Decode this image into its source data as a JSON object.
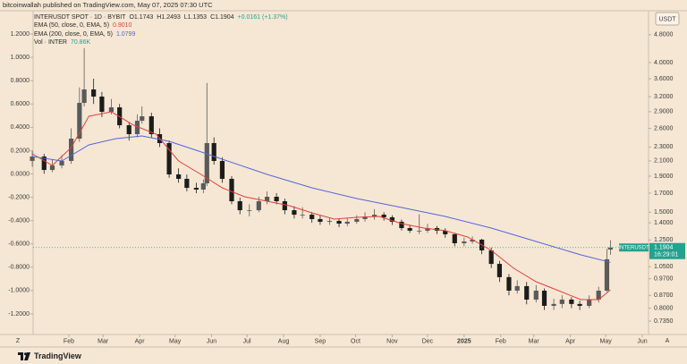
{
  "chart_data": {
    "type": "candlestick",
    "header": "bitcoinwallah published on TradingView.com, May 07, 2025 07:30 UTC",
    "legend": {
      "symbol": "INTERUSDT SPOT · 1D · BYBIT",
      "open": "O1.1743",
      "high": "H1.2493",
      "low": "L1.1353",
      "close": "C1.1904",
      "change": "+0.0161 (+1.37%)"
    },
    "currency": "USDT",
    "price_tag": {
      "symbol": "INTERUSDT",
      "price": "1.1904",
      "countdown": "16:29:01"
    },
    "corner_left": "Z",
    "corner_right": "A",
    "brand": "TradingView",
    "volume_legend": {
      "name": "Vol · INTER",
      "value": "70.86K",
      "color": "#22a28f"
    },
    "log_scale": true,
    "grid": false,
    "up_color": "#5a5a5a",
    "down_color": "#1c1c1c",
    "price_line_color": "#22a28f",
    "xlim": [
      0.7,
      522.3
    ],
    "xticks": [
      {
        "value": 31,
        "label": "Feb"
      },
      {
        "value": 60,
        "label": "Mar"
      },
      {
        "value": 91,
        "label": "Apr"
      },
      {
        "value": 121,
        "label": "May"
      },
      {
        "value": 152,
        "label": "Jun"
      },
      {
        "value": 182,
        "label": "Jul"
      },
      {
        "value": 213,
        "label": "Aug"
      },
      {
        "value": 244,
        "label": "Sep"
      },
      {
        "value": 274,
        "label": "Oct"
      },
      {
        "value": 305,
        "label": "Nov"
      },
      {
        "value": 335,
        "label": "Dec"
      },
      {
        "value": 366,
        "label": "2025"
      },
      {
        "value": 397,
        "label": "Feb"
      },
      {
        "value": 425,
        "label": "Mar"
      },
      {
        "value": 456,
        "label": "Apr"
      },
      {
        "value": 486,
        "label": "May"
      },
      {
        "value": 517,
        "label": "Jun"
      }
    ],
    "ylim": [
      0.673,
      5.62
    ],
    "yticks": [
      {
        "value": 4.8,
        "label": "4.8000"
      },
      {
        "value": 4,
        "label": "4.0000"
      },
      {
        "value": 3.6,
        "label": "3.6000"
      },
      {
        "value": 3.2,
        "label": "3.2000"
      },
      {
        "value": 2.9,
        "label": "2.9000"
      },
      {
        "value": 2.6,
        "label": "2.6000"
      },
      {
        "value": 2.3,
        "label": "2.3000"
      },
      {
        "value": 2.1,
        "label": "2.1000"
      },
      {
        "value": 1.9,
        "label": "1.9000"
      },
      {
        "value": 1.7,
        "label": "1.7000"
      },
      {
        "value": 1.5,
        "label": "1.5000"
      },
      {
        "value": 1.4,
        "label": "1.4000"
      },
      {
        "value": 1.25,
        "label": "1.2500"
      },
      {
        "value": 1.05,
        "label": "1.0500"
      },
      {
        "value": 0.97,
        "label": "0.9700"
      },
      {
        "value": 0.87,
        "label": "0.8700"
      },
      {
        "value": 0.8,
        "label": "0.8000"
      },
      {
        "value": 0.735,
        "label": "0.7350"
      }
    ],
    "y2lim": [
      -1.377,
      1.4
    ],
    "y2ticks": [
      {
        "value": 1.2,
        "label": "1.2000"
      },
      {
        "value": 1,
        "label": "1.0000"
      },
      {
        "value": 0.8,
        "label": "0.8000"
      },
      {
        "value": 0.6,
        "label": "0.6000"
      },
      {
        "value": 0.4,
        "label": "0.4000"
      },
      {
        "value": 0.2,
        "label": "0.2000"
      },
      {
        "value": 0,
        "label": "0.0000"
      },
      {
        "value": -0.2,
        "label": "-0.2000"
      },
      {
        "value": -0.4,
        "label": "-0.4000"
      },
      {
        "value": -0.6,
        "label": "-0.6000"
      },
      {
        "value": -0.8,
        "label": "-0.8000"
      },
      {
        "value": -1,
        "label": "-1.0000"
      },
      {
        "value": -1.2,
        "label": "-1.2000"
      }
    ],
    "candles": [
      {
        "x": 0,
        "open": 2.1,
        "high": 2.25,
        "low": 2.02,
        "close": 2.161
      },
      {
        "x": 10,
        "open": 2.161,
        "high": 2.2,
        "low": 1.93,
        "close": 1.979
      },
      {
        "x": 17,
        "open": 1.979,
        "high": 2.12,
        "low": 1.95,
        "close": 2.038
      },
      {
        "x": 25,
        "open": 2.038,
        "high": 2.18,
        "low": 2.0,
        "close": 2.099
      },
      {
        "x": 33,
        "open": 2.099,
        "high": 2.6,
        "low": 2.06,
        "close": 2.43
      },
      {
        "x": 40,
        "open": 2.43,
        "high": 3.4,
        "low": 2.38,
        "close": 3.072
      },
      {
        "x": 44,
        "open": 3.072,
        "high": 4.4,
        "low": 3.0,
        "close": 3.355
      },
      {
        "x": 52,
        "open": 3.355,
        "high": 3.6,
        "low": 3.05,
        "close": 3.201
      },
      {
        "x": 59,
        "open": 3.201,
        "high": 3.3,
        "low": 2.8,
        "close": 2.897
      },
      {
        "x": 67,
        "open": 2.897,
        "high": 3.15,
        "low": 2.85,
        "close": 2.983
      },
      {
        "x": 74,
        "open": 2.983,
        "high": 3.05,
        "low": 2.6,
        "close": 2.653
      },
      {
        "x": 82,
        "open": 2.653,
        "high": 2.7,
        "low": 2.4,
        "close": 2.502
      },
      {
        "x": 89,
        "open": 2.502,
        "high": 2.85,
        "low": 2.45,
        "close": 2.732
      },
      {
        "x": 93,
        "open": 2.732,
        "high": 3.0,
        "low": 2.68,
        "close": 2.813
      },
      {
        "x": 101,
        "open": 2.813,
        "high": 2.88,
        "low": 2.45,
        "close": 2.502
      },
      {
        "x": 108,
        "open": 2.502,
        "high": 2.6,
        "low": 2.3,
        "close": 2.36
      },
      {
        "x": 116,
        "open": 2.36,
        "high": 2.4,
        "low": 1.88,
        "close": 1.922
      },
      {
        "x": 124,
        "open": 1.922,
        "high": 2.0,
        "low": 1.82,
        "close": 1.867
      },
      {
        "x": 131,
        "open": 1.867,
        "high": 1.92,
        "low": 1.72,
        "close": 1.76
      },
      {
        "x": 139,
        "open": 1.76,
        "high": 1.82,
        "low": 1.7,
        "close": 1.74
      },
      {
        "x": 145,
        "open": 1.74,
        "high": 1.86,
        "low": 1.7,
        "close": 1.813
      },
      {
        "x": 148,
        "open": 1.813,
        "high": 3.5,
        "low": 1.78,
        "close": 2.36
      },
      {
        "x": 154,
        "open": 2.36,
        "high": 2.45,
        "low": 2.05,
        "close": 2.099
      },
      {
        "x": 161,
        "open": 2.099,
        "high": 2.15,
        "low": 1.82,
        "close": 1.867
      },
      {
        "x": 169,
        "open": 1.867,
        "high": 1.9,
        "low": 1.58,
        "close": 1.612
      },
      {
        "x": 176,
        "open": 1.612,
        "high": 1.65,
        "low": 1.48,
        "close": 1.52
      },
      {
        "x": 184,
        "open": 1.52,
        "high": 1.58,
        "low": 1.46,
        "close": 1.52
      },
      {
        "x": 192,
        "open": 1.52,
        "high": 1.66,
        "low": 1.5,
        "close": 1.612
      },
      {
        "x": 199,
        "open": 1.612,
        "high": 1.72,
        "low": 1.58,
        "close": 1.66
      },
      {
        "x": 207,
        "open": 1.66,
        "high": 1.7,
        "low": 1.58,
        "close": 1.612
      },
      {
        "x": 214,
        "open": 1.612,
        "high": 1.64,
        "low": 1.48,
        "close": 1.52
      },
      {
        "x": 222,
        "open": 1.52,
        "high": 1.56,
        "low": 1.44,
        "close": 1.476
      },
      {
        "x": 229,
        "open": 1.476,
        "high": 1.55,
        "low": 1.44,
        "close": 1.476
      },
      {
        "x": 237,
        "open": 1.476,
        "high": 1.5,
        "low": 1.4,
        "close": 1.434
      },
      {
        "x": 244,
        "open": 1.434,
        "high": 1.47,
        "low": 1.38,
        "close": 1.409
      },
      {
        "x": 252,
        "open": 1.409,
        "high": 1.45,
        "low": 1.38,
        "close": 1.417
      },
      {
        "x": 260,
        "open": 1.417,
        "high": 1.44,
        "low": 1.36,
        "close": 1.392
      },
      {
        "x": 267,
        "open": 1.392,
        "high": 1.44,
        "low": 1.37,
        "close": 1.409
      },
      {
        "x": 275,
        "open": 1.409,
        "high": 1.47,
        "low": 1.39,
        "close": 1.434
      },
      {
        "x": 282,
        "open": 1.434,
        "high": 1.5,
        "low": 1.41,
        "close": 1.459
      },
      {
        "x": 290,
        "open": 1.459,
        "high": 1.53,
        "low": 1.43,
        "close": 1.476
      },
      {
        "x": 298,
        "open": 1.476,
        "high": 1.5,
        "low": 1.42,
        "close": 1.451
      },
      {
        "x": 305,
        "open": 1.451,
        "high": 1.47,
        "low": 1.38,
        "close": 1.409
      },
      {
        "x": 313,
        "open": 1.409,
        "high": 1.43,
        "low": 1.33,
        "close": 1.352
      },
      {
        "x": 320,
        "open": 1.352,
        "high": 1.38,
        "low": 1.31,
        "close": 1.329
      },
      {
        "x": 328,
        "open": 1.329,
        "high": 1.48,
        "low": 1.3,
        "close": 1.329
      },
      {
        "x": 335,
        "open": 1.329,
        "high": 1.39,
        "low": 1.31,
        "close": 1.352
      },
      {
        "x": 343,
        "open": 1.352,
        "high": 1.37,
        "low": 1.3,
        "close": 1.329
      },
      {
        "x": 350,
        "open": 1.329,
        "high": 1.35,
        "low": 1.27,
        "close": 1.298
      },
      {
        "x": 358,
        "open": 1.298,
        "high": 1.31,
        "low": 1.2,
        "close": 1.224
      },
      {
        "x": 366,
        "open": 1.224,
        "high": 1.27,
        "low": 1.2,
        "close": 1.238
      },
      {
        "x": 373,
        "open": 1.238,
        "high": 1.28,
        "low": 1.22,
        "close": 1.253
      },
      {
        "x": 381,
        "open": 1.253,
        "high": 1.26,
        "low": 1.14,
        "close": 1.168
      },
      {
        "x": 389,
        "open": 1.168,
        "high": 1.19,
        "low": 1.04,
        "close": 1.069
      },
      {
        "x": 396,
        "open": 1.069,
        "high": 1.09,
        "low": 0.95,
        "close": 0.98
      },
      {
        "x": 404,
        "open": 0.98,
        "high": 1.0,
        "low": 0.87,
        "close": 0.897
      },
      {
        "x": 411,
        "open": 0.897,
        "high": 0.96,
        "low": 0.88,
        "close": 0.924
      },
      {
        "x": 419,
        "open": 0.924,
        "high": 0.95,
        "low": 0.82,
        "close": 0.846
      },
      {
        "x": 427,
        "open": 0.846,
        "high": 0.93,
        "low": 0.83,
        "close": 0.897
      },
      {
        "x": 434,
        "open": 0.897,
        "high": 0.91,
        "low": 0.79,
        "close": 0.812
      },
      {
        "x": 442,
        "open": 0.812,
        "high": 0.85,
        "low": 0.79,
        "close": 0.822
      },
      {
        "x": 449,
        "open": 0.822,
        "high": 0.87,
        "low": 0.8,
        "close": 0.846
      },
      {
        "x": 457,
        "open": 0.846,
        "high": 0.86,
        "low": 0.8,
        "close": 0.822
      },
      {
        "x": 464,
        "open": 0.822,
        "high": 0.84,
        "low": 0.79,
        "close": 0.812
      },
      {
        "x": 472,
        "open": 0.812,
        "high": 0.87,
        "low": 0.8,
        "close": 0.846
      },
      {
        "x": 480,
        "open": 0.846,
        "high": 0.92,
        "low": 0.83,
        "close": 0.897
      },
      {
        "x": 487,
        "open": 0.897,
        "high": 1.18,
        "low": 0.89,
        "close": 1.102
      },
      {
        "x": 490,
        "open": 1.1743,
        "high": 1.2493,
        "low": 1.1353,
        "close": 1.1904
      }
    ],
    "series": [
      {
        "name": "EMA (50, close, 0, EMA, 5)",
        "value_label": "0.9010",
        "color": "#e0403a",
        "x": [
          0,
          17,
          33,
          48,
          67,
          86,
          105,
          124,
          143,
          161,
          180,
          199,
          218,
          237,
          256,
          275,
          294,
          313,
          332,
          350,
          369,
          389,
          408,
          427,
          446,
          465,
          480,
          490
        ],
        "values": [
          2.2,
          2.038,
          2.292,
          2.813,
          2.897,
          2.653,
          2.502,
          2.099,
          1.922,
          1.76,
          1.66,
          1.612,
          1.566,
          1.494,
          1.434,
          1.451,
          1.459,
          1.392,
          1.352,
          1.329,
          1.275,
          1.168,
          1.039,
          0.951,
          0.897,
          0.846,
          0.846,
          0.901
        ]
      },
      {
        "name": "EMA (200, close, 0, EMA, 5)",
        "value_label": "1.0799",
        "color": "#5566d4",
        "x": [
          0,
          25,
          48,
          71,
          93,
          116,
          139,
          161,
          199,
          237,
          275,
          313,
          350,
          389,
          427,
          465,
          490
        ],
        "values": [
          2.161,
          2.099,
          2.332,
          2.43,
          2.473,
          2.388,
          2.252,
          2.124,
          1.922,
          1.76,
          1.641,
          1.547,
          1.459,
          1.352,
          1.238,
          1.134,
          1.0799
        ]
      }
    ]
  }
}
